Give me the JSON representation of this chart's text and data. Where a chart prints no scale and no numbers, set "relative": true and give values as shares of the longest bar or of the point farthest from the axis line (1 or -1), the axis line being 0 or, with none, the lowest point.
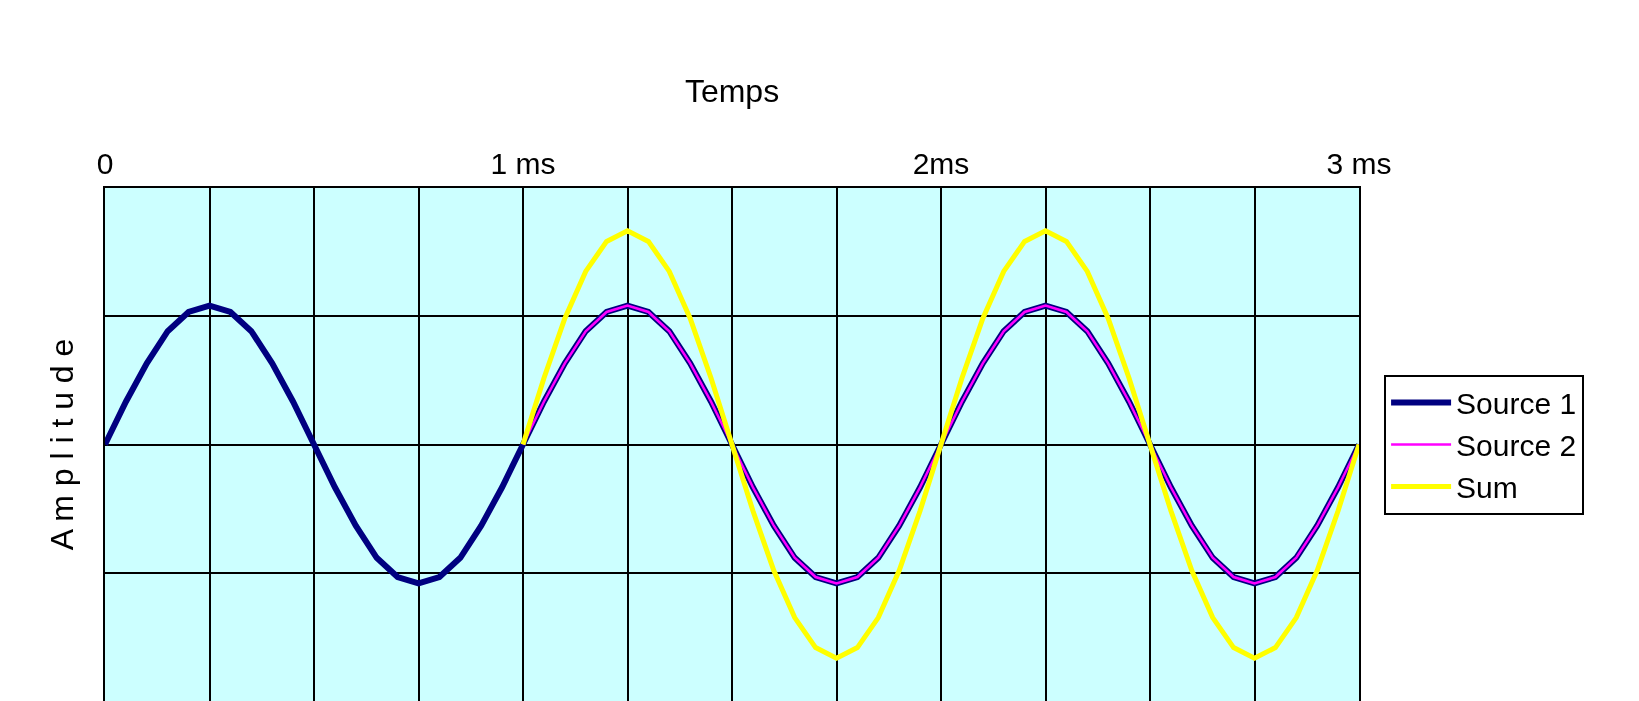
{
  "chart_data": {
    "type": "line",
    "xlabel": "Temps",
    "ylabel": "A m p l i t u d e",
    "relative": true,
    "grid": true,
    "legend": "right",
    "marker": "none",
    "line_style": "solid",
    "xlim": [
      0,
      3
    ],
    "xticks": [
      {
        "value": 0,
        "label": "0"
      },
      {
        "value": 0.25,
        "label": null
      },
      {
        "value": 0.5,
        "label": null
      },
      {
        "value": 0.75,
        "label": null
      },
      {
        "value": 1,
        "label": "1 ms"
      },
      {
        "value": 1.25,
        "label": null
      },
      {
        "value": 1.5,
        "label": null
      },
      {
        "value": 1.75,
        "label": null
      },
      {
        "value": 2,
        "label": "2ms"
      },
      {
        "value": 2.25,
        "label": null
      },
      {
        "value": 2.5,
        "label": null
      },
      {
        "value": 2.75,
        "label": null
      },
      {
        "value": 3,
        "label": "3 ms"
      }
    ],
    "series": [
      {
        "name": "Source 1",
        "color": "#000080",
        "x": [
          0,
          0.05,
          0.1,
          0.15,
          0.2,
          0.25,
          0.3,
          0.35,
          0.4,
          0.45,
          0.5,
          0.55,
          0.6,
          0.65,
          0.7,
          0.75,
          0.8,
          0.85,
          0.9,
          0.95,
          1,
          1.05,
          1.1,
          1.15,
          1.2,
          1.25,
          1.3,
          1.35,
          1.4,
          1.45,
          1.5,
          1.55,
          1.6,
          1.65,
          1.7,
          1.75,
          1.8,
          1.85,
          1.9,
          1.95,
          2,
          2.05,
          2.1,
          2.15,
          2.2,
          2.25,
          2.3,
          2.35,
          2.4,
          2.45,
          2.5,
          2.55,
          2.6,
          2.65,
          2.7,
          2.75,
          2.8,
          2.85,
          2.9,
          2.95,
          3
        ],
        "values": [
          0,
          0.2,
          0.38,
          0.53,
          0.62,
          0.65,
          0.62,
          0.53,
          0.38,
          0.2,
          0,
          -0.2,
          -0.38,
          -0.53,
          -0.62,
          -0.65,
          -0.62,
          -0.53,
          -0.38,
          -0.2,
          0,
          0.2,
          0.38,
          0.53,
          0.62,
          0.65,
          0.62,
          0.53,
          0.38,
          0.2,
          0,
          -0.2,
          -0.38,
          -0.53,
          -0.62,
          -0.65,
          -0.62,
          -0.53,
          -0.38,
          -0.2,
          0,
          0.2,
          0.38,
          0.53,
          0.62,
          0.65,
          0.62,
          0.53,
          0.38,
          0.2,
          0,
          -0.2,
          -0.38,
          -0.53,
          -0.62,
          -0.65,
          -0.62,
          -0.53,
          -0.38,
          -0.2,
          0
        ]
      },
      {
        "name": "Source 2",
        "color": "#ff00ff",
        "x": [
          1,
          1.05,
          1.1,
          1.15,
          1.2,
          1.25,
          1.3,
          1.35,
          1.4,
          1.45,
          1.5,
          1.55,
          1.6,
          1.65,
          1.7,
          1.75,
          1.8,
          1.85,
          1.9,
          1.95,
          2,
          2.05,
          2.1,
          2.15,
          2.2,
          2.25,
          2.3,
          2.35,
          2.4,
          2.45,
          2.5,
          2.55,
          2.6,
          2.65,
          2.7,
          2.75,
          2.8,
          2.85,
          2.9,
          2.95,
          3
        ],
        "values": [
          0,
          0.2,
          0.38,
          0.53,
          0.62,
          0.65,
          0.62,
          0.53,
          0.38,
          0.2,
          0,
          -0.2,
          -0.38,
          -0.53,
          -0.62,
          -0.65,
          -0.62,
          -0.53,
          -0.38,
          -0.2,
          0,
          0.2,
          0.38,
          0.53,
          0.62,
          0.65,
          0.62,
          0.53,
          0.38,
          0.2,
          0,
          -0.2,
          -0.38,
          -0.53,
          -0.62,
          -0.65,
          -0.62,
          -0.53,
          -0.38,
          -0.2,
          0
        ]
      },
      {
        "name": "Sum",
        "color": "#ffff00",
        "x": [
          1,
          1.05,
          1.1,
          1.15,
          1.2,
          1.25,
          1.3,
          1.35,
          1.4,
          1.45,
          1.5,
          1.55,
          1.6,
          1.65,
          1.7,
          1.75,
          1.8,
          1.85,
          1.9,
          1.95,
          2,
          2.05,
          2.1,
          2.15,
          2.2,
          2.25,
          2.3,
          2.35,
          2.4,
          2.45,
          2.5,
          2.55,
          2.6,
          2.65,
          2.7,
          2.75,
          2.8,
          2.85,
          2.9,
          2.95,
          3
        ],
        "values": [
          0,
          0.31,
          0.59,
          0.81,
          0.95,
          1,
          0.95,
          0.81,
          0.59,
          0.31,
          0,
          -0.31,
          -0.59,
          -0.81,
          -0.95,
          -1,
          -0.95,
          -0.81,
          -0.59,
          -0.31,
          0,
          0.31,
          0.59,
          0.81,
          0.95,
          1,
          0.95,
          0.81,
          0.59,
          0.31,
          0,
          -0.31,
          -0.59,
          -0.81,
          -0.95,
          -1,
          -0.95,
          -0.81,
          -0.59,
          -0.31,
          0
        ]
      }
    ]
  }
}
